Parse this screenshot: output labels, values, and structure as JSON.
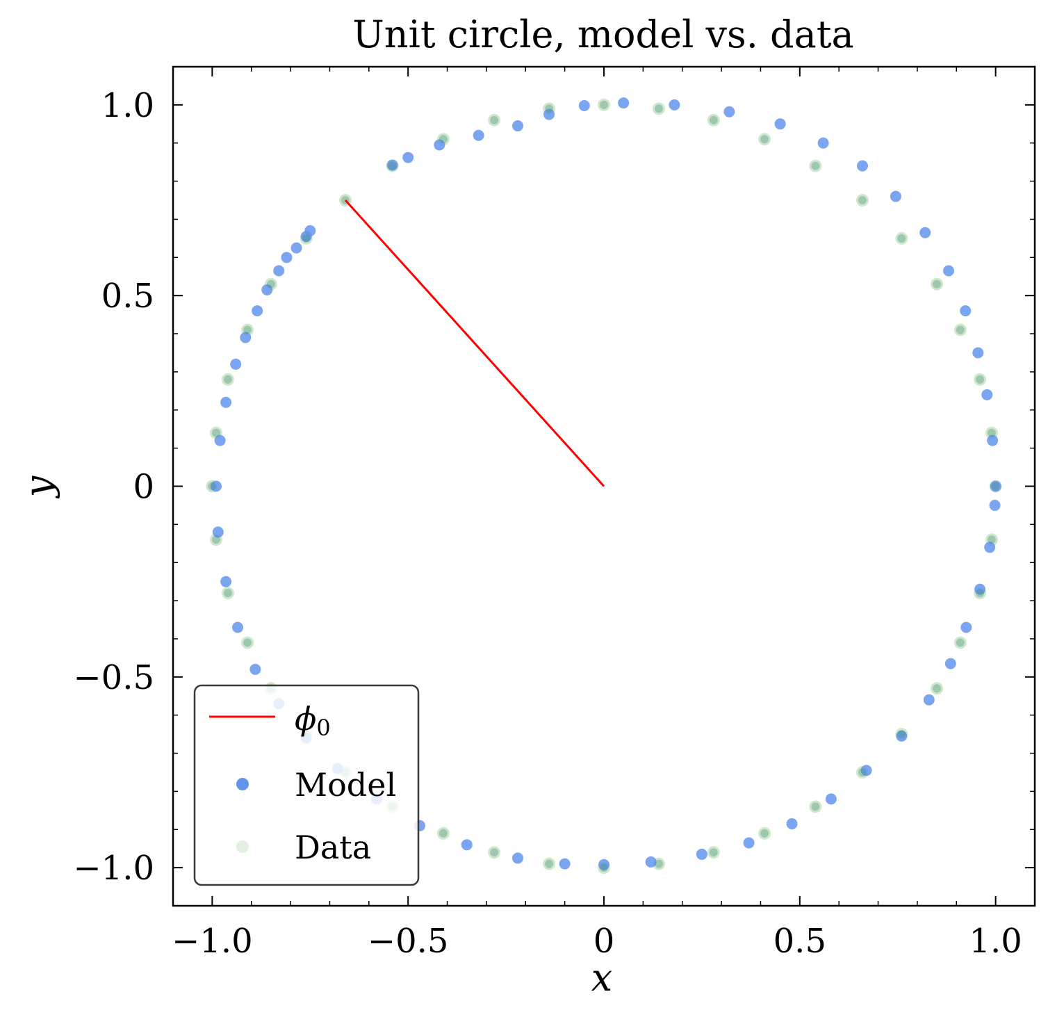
{
  "chart_data": {
    "type": "scatter",
    "title": "Unit circle, model vs. data",
    "xlabel": "x",
    "ylabel": "y",
    "xlim": [
      -1.1,
      1.1
    ],
    "ylim": [
      -1.1,
      1.1
    ],
    "grid": false,
    "legend_position": "lower-left",
    "x_ticks": [
      {
        "value": -1.0,
        "label": "−1.0"
      },
      {
        "value": -0.5,
        "label": "−0.5"
      },
      {
        "value": 0,
        "label": "0"
      },
      {
        "value": 0.5,
        "label": "0.5"
      },
      {
        "value": 1.0,
        "label": "1.0"
      }
    ],
    "y_ticks": [
      {
        "value": -1.0,
        "label": "−1.0"
      },
      {
        "value": -0.5,
        "label": "−0.5"
      },
      {
        "value": 0,
        "label": "0"
      },
      {
        "value": 0.5,
        "label": "0.5"
      },
      {
        "value": 1.0,
        "label": "1.0"
      }
    ],
    "phi0_line": {
      "name": "φ0",
      "color": "#ff0000",
      "x": [
        0,
        -0.66
      ],
      "y": [
        0,
        0.75
      ]
    },
    "series": [
      {
        "name": "Model",
        "color": "#6495ed",
        "points": [
          [
            1.0,
            0.0
          ],
          [
            0.992,
            0.12
          ],
          [
            0.978,
            0.24
          ],
          [
            0.955,
            0.35
          ],
          [
            0.923,
            0.46
          ],
          [
            0.88,
            0.565
          ],
          [
            0.82,
            0.665
          ],
          [
            0.745,
            0.76
          ],
          [
            0.66,
            0.84
          ],
          [
            0.56,
            0.9
          ],
          [
            0.45,
            0.95
          ],
          [
            0.32,
            0.982
          ],
          [
            0.18,
            1.0
          ],
          [
            0.05,
            1.005
          ],
          [
            -0.05,
            0.998
          ],
          [
            -0.14,
            0.975
          ],
          [
            -0.22,
            0.945
          ],
          [
            -0.32,
            0.92
          ],
          [
            -0.42,
            0.895
          ],
          [
            -0.5,
            0.862
          ],
          [
            -0.54,
            0.842
          ],
          [
            -0.75,
            0.67
          ],
          [
            -0.76,
            0.655
          ],
          [
            -0.785,
            0.625
          ],
          [
            -0.81,
            0.6
          ],
          [
            -0.83,
            0.565
          ],
          [
            -0.86,
            0.515
          ],
          [
            -0.885,
            0.46
          ],
          [
            -0.915,
            0.39
          ],
          [
            -0.94,
            0.32
          ],
          [
            -0.965,
            0.22
          ],
          [
            -0.98,
            0.12
          ],
          [
            -0.99,
            0.0
          ],
          [
            -0.985,
            -0.12
          ],
          [
            -0.965,
            -0.25
          ],
          [
            -0.935,
            -0.37
          ],
          [
            -0.89,
            -0.48
          ],
          [
            -0.83,
            -0.57
          ],
          [
            -0.76,
            -0.66
          ],
          [
            -0.68,
            -0.74
          ],
          [
            -0.58,
            -0.82
          ],
          [
            -0.47,
            -0.89
          ],
          [
            -0.35,
            -0.94
          ],
          [
            -0.22,
            -0.975
          ],
          [
            -0.1,
            -0.99
          ],
          [
            0.0,
            -0.992
          ],
          [
            0.12,
            -0.985
          ],
          [
            0.25,
            -0.965
          ],
          [
            0.37,
            -0.935
          ],
          [
            0.48,
            -0.885
          ],
          [
            0.58,
            -0.82
          ],
          [
            0.67,
            -0.745
          ],
          [
            0.76,
            -0.655
          ],
          [
            0.83,
            -0.56
          ],
          [
            0.885,
            -0.465
          ],
          [
            0.925,
            -0.37
          ],
          [
            0.96,
            -0.27
          ],
          [
            0.985,
            -0.16
          ],
          [
            0.998,
            -0.05
          ]
        ]
      },
      {
        "name": "Data",
        "color": "#a8d5a2",
        "points": [
          [
            1.0,
            0.0
          ],
          [
            0.99,
            0.14
          ],
          [
            0.96,
            0.28
          ],
          [
            0.91,
            0.41
          ],
          [
            0.85,
            0.53
          ],
          [
            0.76,
            0.65
          ],
          [
            0.66,
            0.75
          ],
          [
            0.54,
            0.84
          ],
          [
            0.41,
            0.91
          ],
          [
            0.28,
            0.96
          ],
          [
            0.14,
            0.99
          ],
          [
            0.0,
            1.0
          ],
          [
            -0.14,
            0.99
          ],
          [
            -0.28,
            0.96
          ],
          [
            -0.41,
            0.91
          ],
          [
            -0.54,
            0.84
          ],
          [
            -0.66,
            0.75
          ],
          [
            -0.76,
            0.65
          ],
          [
            -0.85,
            0.53
          ],
          [
            -0.91,
            0.41
          ],
          [
            -0.96,
            0.28
          ],
          [
            -0.99,
            0.14
          ],
          [
            -1.0,
            0.0
          ],
          [
            -0.99,
            -0.14
          ],
          [
            -0.96,
            -0.28
          ],
          [
            -0.91,
            -0.41
          ],
          [
            -0.85,
            -0.53
          ],
          [
            -0.76,
            -0.65
          ],
          [
            -0.66,
            -0.75
          ],
          [
            -0.54,
            -0.84
          ],
          [
            -0.41,
            -0.91
          ],
          [
            -0.28,
            -0.96
          ],
          [
            -0.14,
            -0.99
          ],
          [
            0.0,
            -1.0
          ],
          [
            0.14,
            -0.99
          ],
          [
            0.28,
            -0.96
          ],
          [
            0.41,
            -0.91
          ],
          [
            0.54,
            -0.84
          ],
          [
            0.66,
            -0.75
          ],
          [
            0.76,
            -0.65
          ],
          [
            0.85,
            -0.53
          ],
          [
            0.91,
            -0.41
          ],
          [
            0.96,
            -0.28
          ],
          [
            0.99,
            -0.14
          ]
        ]
      }
    ]
  },
  "legend": {
    "phi0_symbol": "ϕ",
    "phi0_subscript": "0",
    "model_label": "Model",
    "data_label": "Data"
  }
}
